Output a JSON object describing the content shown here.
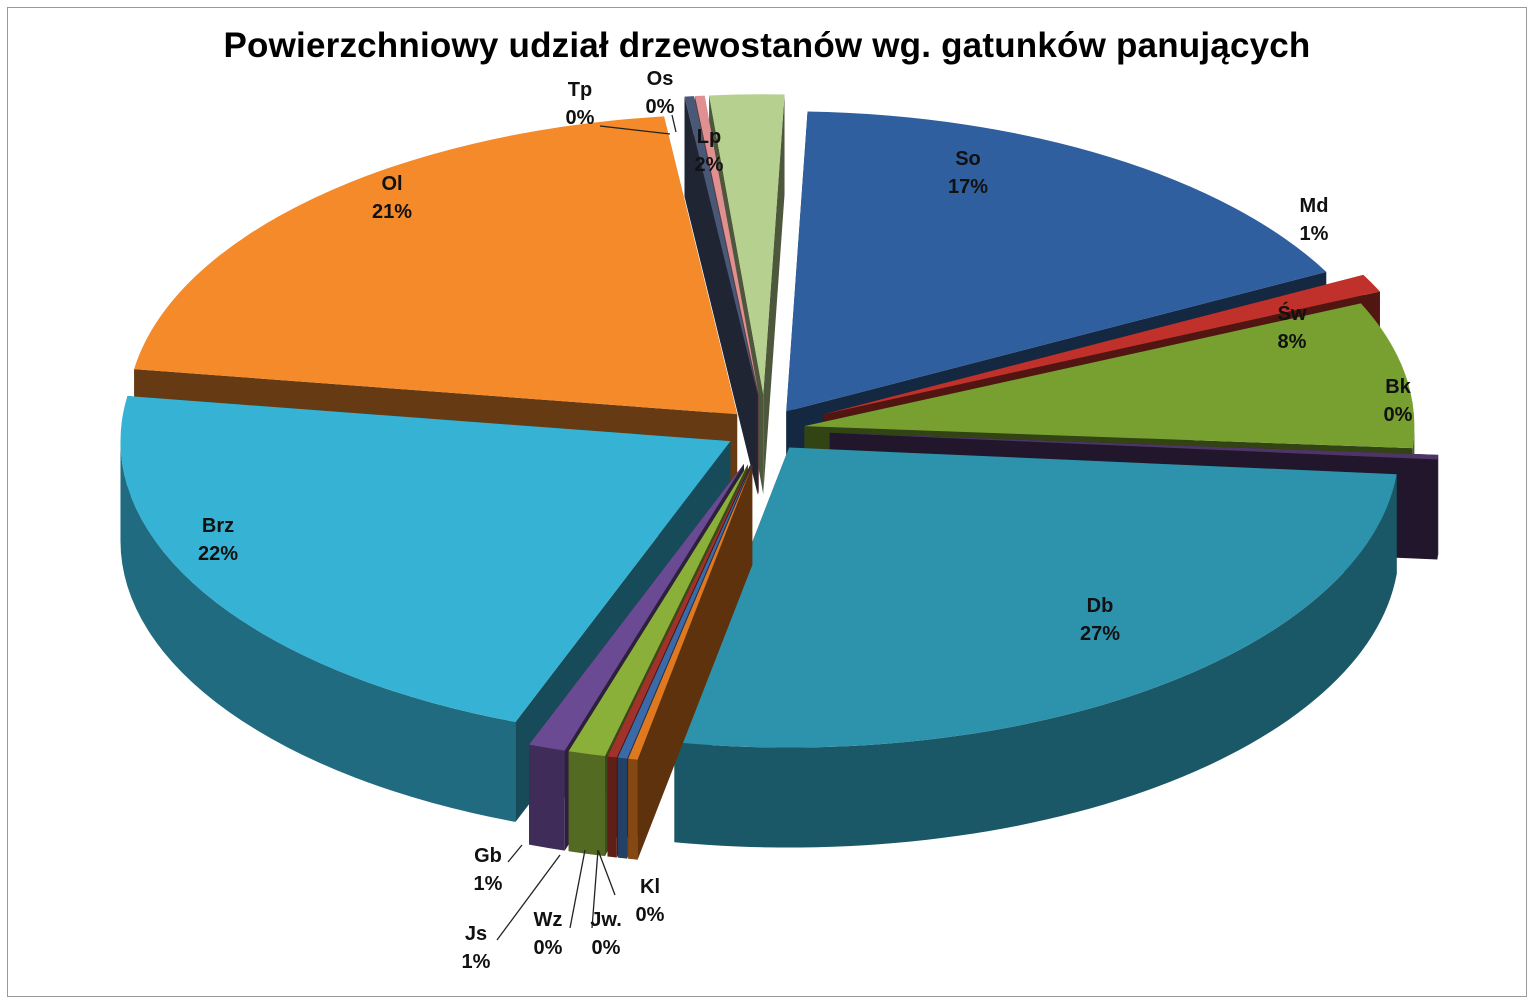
{
  "chart_data": {
    "type": "pie",
    "title": "Powierzchniowy udział drzewostanów wg. gatunków panujących",
    "exploded": true,
    "three_d": true,
    "slices": [
      {
        "name": "So",
        "value": 17,
        "label": "17%",
        "color": "#2f5f9e"
      },
      {
        "name": "Md",
        "value": 1,
        "label": "1%",
        "color": "#c0312b"
      },
      {
        "name": "Św",
        "value": 8,
        "label": "8%",
        "color": "#78a030"
      },
      {
        "name": "Bk",
        "value": 0,
        "label": "0%",
        "color": "#4e3566"
      },
      {
        "name": "Db",
        "value": 27,
        "label": "27%",
        "color": "#2d93ac"
      },
      {
        "name": "Kl",
        "value": 0,
        "label": "0%",
        "color": "#e07820"
      },
      {
        "name": "Jw.",
        "value": 0,
        "label": "0%",
        "color": "#3a6aa8"
      },
      {
        "name": "Wz",
        "value": 0,
        "label": "0%",
        "color": "#a0322a"
      },
      {
        "name": "Js",
        "value": 1,
        "label": "1%",
        "color": "#8ab03a"
      },
      {
        "name": "Gb",
        "value": 1,
        "label": "1%",
        "color": "#6a4a92"
      },
      {
        "name": "Brz",
        "value": 22,
        "label": "22%",
        "color": "#36b2d4"
      },
      {
        "name": "Ol",
        "value": 21,
        "label": "21%",
        "color": "#f48a2a"
      },
      {
        "name": "Tp",
        "value": 0,
        "label": "0%",
        "color": "#4a5878"
      },
      {
        "name": "Os",
        "value": 0,
        "label": "0%",
        "color": "#e09090"
      },
      {
        "name": "Lp",
        "value": 2,
        "label": "2%",
        "color": "#b6d090"
      }
    ]
  }
}
